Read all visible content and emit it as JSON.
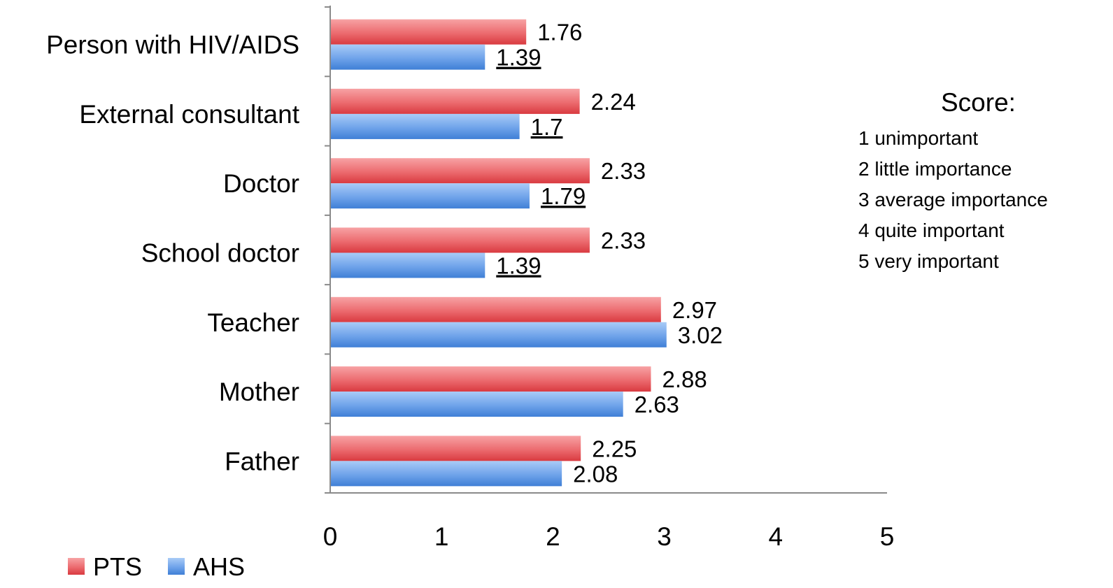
{
  "chart_data": {
    "type": "bar",
    "orientation": "horizontal",
    "categories": [
      "Person with HIV/AIDS",
      "External consultant",
      "Doctor",
      "School doctor",
      "Teacher",
      "Mother",
      "Father"
    ],
    "series": [
      {
        "name": "PTS",
        "color": "#e8545a",
        "values": [
          1.76,
          2.24,
          2.33,
          2.33,
          2.97,
          2.88,
          2.25
        ],
        "labels": [
          "1.76",
          "2.24",
          "2.33",
          "2.33",
          "2.97",
          "2.88",
          "2.25"
        ],
        "underlined": [
          false,
          false,
          false,
          false,
          false,
          false,
          false
        ]
      },
      {
        "name": "AHS",
        "color": "#5b93e0",
        "values": [
          1.39,
          1.7,
          1.79,
          1.39,
          3.02,
          2.63,
          2.08
        ],
        "labels": [
          "1.39",
          "1.7",
          "1.79",
          "1.39",
          "3.02",
          "2.63",
          "2.08"
        ],
        "underlined": [
          true,
          true,
          true,
          true,
          false,
          false,
          false
        ]
      }
    ],
    "xlim": [
      0,
      5
    ],
    "xticks": [
      "0",
      "1",
      "2",
      "3",
      "4",
      "5"
    ],
    "grid": false,
    "legend": "bottom-left"
  },
  "score_legend": {
    "title": "Score:",
    "items": [
      "1 unimportant",
      "2 little importance",
      "3 average importance",
      "4 quite important",
      "5 very important"
    ]
  }
}
